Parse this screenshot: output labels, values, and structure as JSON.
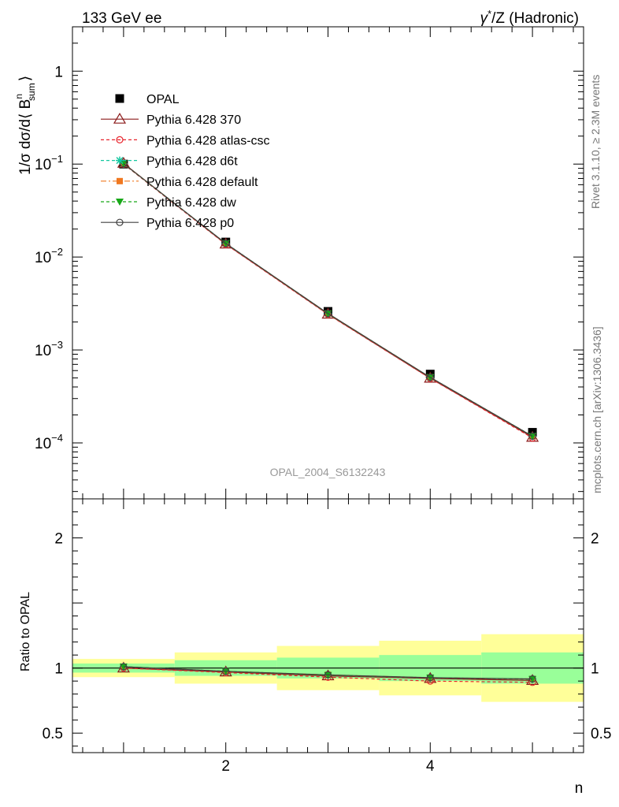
{
  "header": {
    "left": "133 GeV ee",
    "right_html_parts": [
      "γ",
      "*",
      "/Z (Hadronic)"
    ]
  },
  "side_text": {
    "rivet": "Rivet 3.1.10, ≥ 2.3M events",
    "mcplots": "mcplots.cern.ch [arXiv:1306.3436]"
  },
  "watermark": "OPAL_2004_S6132243",
  "main_ylabel_parts": [
    "1/σ dσ/d⟨ B",
    "n",
    "sum",
    "⟩"
  ],
  "ratio_ylabel": "Ratio to OPAL",
  "xlabel": "n",
  "chart_data": [
    {
      "type": "line",
      "panel": "main",
      "yscale": "log",
      "xlim": [
        0.5,
        5.5
      ],
      "ylim": [
        2.5e-05,
        3
      ],
      "x_ticks": [
        {
          "v": 2,
          "label": "2"
        },
        {
          "v": 4,
          "label": "4"
        }
      ],
      "y_ticks": [
        {
          "v": 1,
          "label": "1"
        },
        {
          "v": 0.1,
          "base": "10",
          "exp": "−1"
        },
        {
          "v": 0.01,
          "base": "10",
          "exp": "−2"
        },
        {
          "v": 0.001,
          "base": "10",
          "exp": "−3"
        },
        {
          "v": 0.0001,
          "base": "10",
          "exp": "−4"
        }
      ],
      "x": [
        1,
        2,
        3,
        4,
        5
      ],
      "data": {
        "name": "OPAL",
        "values": [
          0.1,
          0.0145,
          0.0026,
          0.00055,
          0.00013
        ]
      },
      "series": [
        {
          "name": "Pythia 6.428 370",
          "color": "#8b1a1a",
          "dash": "",
          "marker": "triangle-open",
          "values": [
            0.102,
            0.0138,
            0.00243,
            0.000497,
            0.000115
          ]
        },
        {
          "name": "Pythia 6.428 atlas-csc",
          "color": "#e8242c",
          "dash": "4,3",
          "marker": "circle-open",
          "values": [
            0.1,
            0.0137,
            0.00241,
            0.000495,
            0.000113
          ]
        },
        {
          "name": "Pythia 6.428 d6t",
          "color": "#14c8a0",
          "dash": "4,3",
          "marker": "star",
          "values": [
            0.101,
            0.014,
            0.00246,
            0.000507,
            0.000118
          ]
        },
        {
          "name": "Pythia 6.428 default",
          "color": "#f07820",
          "dash": "7,3,2,3",
          "marker": "square",
          "values": [
            0.101,
            0.014,
            0.00247,
            0.000508,
            0.000118
          ]
        },
        {
          "name": "Pythia 6.428 dw",
          "color": "#18a818",
          "dash": "4,3",
          "marker": "triangle-down",
          "values": [
            0.101,
            0.014,
            0.00246,
            0.000507,
            0.000118
          ]
        },
        {
          "name": "Pythia 6.428 p0",
          "color": "#404040",
          "dash": "",
          "marker": "circle-open",
          "values": [
            0.101,
            0.014,
            0.00247,
            0.000508,
            0.000118
          ]
        }
      ]
    },
    {
      "type": "line",
      "panel": "ratio",
      "xlim": [
        0.5,
        5.5
      ],
      "ylim": [
        0.35,
        2.3
      ],
      "x_ticks": [
        {
          "v": 2,
          "label": "2"
        },
        {
          "v": 4,
          "label": "4"
        }
      ],
      "y_ticks": [
        {
          "v": 0.5,
          "label": "0.5"
        },
        {
          "v": 1,
          "label": "1"
        },
        {
          "v": 2,
          "label": "2"
        }
      ],
      "bins": [
        [
          0.5,
          1.5
        ],
        [
          1.5,
          2.5
        ],
        [
          2.5,
          3.5
        ],
        [
          3.5,
          4.5
        ],
        [
          4.5,
          5.5
        ]
      ],
      "band_inner": [
        [
          0.965,
          1.035
        ],
        [
          0.94,
          1.06
        ],
        [
          0.92,
          1.08
        ],
        [
          0.9,
          1.1
        ],
        [
          0.88,
          1.12
        ]
      ],
      "band_outer": [
        [
          0.93,
          1.07
        ],
        [
          0.88,
          1.12
        ],
        [
          0.83,
          1.17
        ],
        [
          0.79,
          1.21
        ],
        [
          0.74,
          1.26
        ]
      ],
      "x": [
        1,
        2,
        3,
        4,
        5
      ],
      "series": [
        {
          "name": "Pythia 6.428 370",
          "values": [
            1.0,
            0.97,
            0.94,
            0.92,
            0.905
          ]
        },
        {
          "name": "Pythia 6.428 atlas-csc",
          "values": [
            1.0,
            0.965,
            0.93,
            0.9,
            0.89
          ]
        },
        {
          "name": "Pythia 6.428 d6t",
          "values": [
            1.01,
            0.975,
            0.945,
            0.925,
            0.915
          ]
        },
        {
          "name": "Pythia 6.428 default",
          "values": [
            1.01,
            0.975,
            0.948,
            0.926,
            0.916
          ]
        },
        {
          "name": "Pythia 6.428 dw",
          "values": [
            1.01,
            0.975,
            0.945,
            0.925,
            0.915
          ]
        },
        {
          "name": "Pythia 6.428 p0",
          "values": [
            1.01,
            0.975,
            0.948,
            0.926,
            0.916
          ]
        }
      ]
    }
  ]
}
